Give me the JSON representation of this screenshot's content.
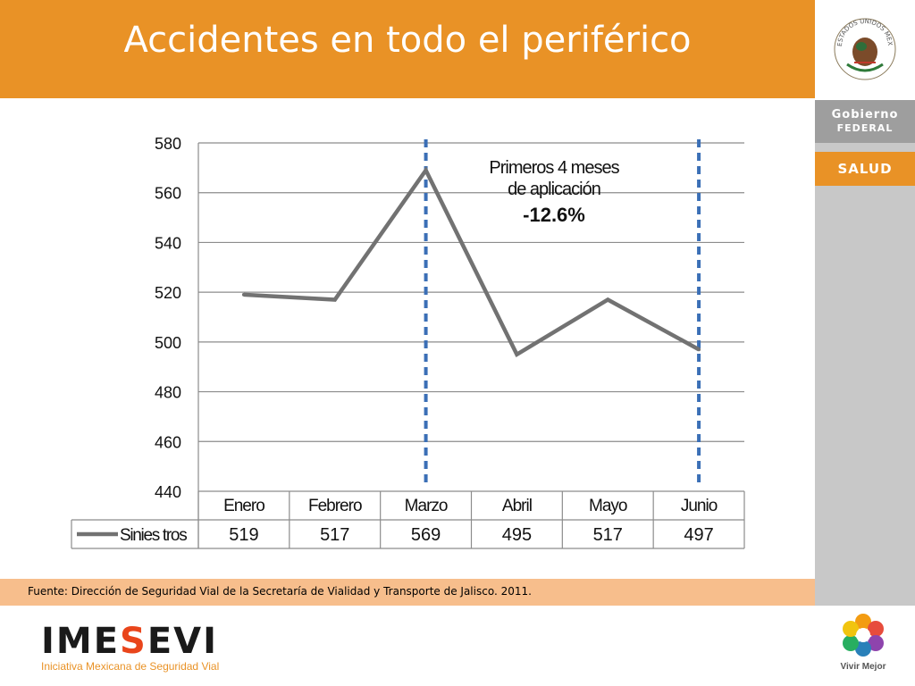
{
  "slide": {
    "title": "Accidentes en todo el periférico",
    "source": "Fuente: Dirección de Seguridad Vial de la Secretaría de Vialidad y Transporte de Jalisco. 2011.",
    "colors": {
      "header": "#E99226",
      "source_band": "#F7BE8C",
      "sidebar": "#C8C8C8"
    }
  },
  "sidebar": {
    "gobierno_line1": "Gobierno",
    "gobierno_line2": "FEDERAL",
    "salud": "SALUD",
    "seal_text": "ESTADOS UNIDOS MEXICANOS"
  },
  "footer": {
    "logo_pre": "IME",
    "logo_mid": "S",
    "logo_post": "EVI",
    "logo_sub": "Iniciativa Mexicana de Seguridad Vial",
    "vivir_mejor": "Vivir Mejor"
  },
  "annotation": {
    "line1": "Primeros 4 meses",
    "line2": "de aplicación",
    "value": "-12.6%"
  },
  "chart_data": {
    "type": "line",
    "categories": [
      "Enero",
      "Febrero",
      "Marzo",
      "Abril",
      "Mayo",
      "Junio"
    ],
    "series": [
      {
        "name": "Sinies tros",
        "values": [
          519,
          517,
          569,
          495,
          517,
          497
        ],
        "color": "#727272"
      }
    ],
    "yticks": [
      440,
      460,
      480,
      500,
      520,
      540,
      560,
      580
    ],
    "ylim": [
      440,
      580
    ],
    "grid": true,
    "marker_lines": [
      "Marzo",
      "Junio"
    ],
    "marker_color": "#3B6FB6",
    "data_table": true
  }
}
